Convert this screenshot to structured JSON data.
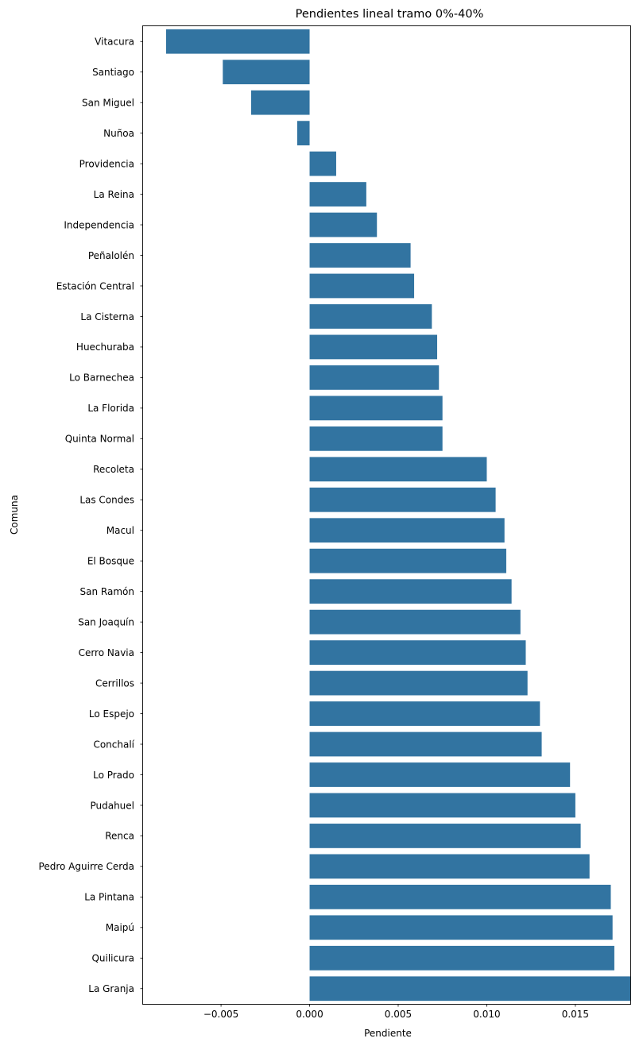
{
  "chart_data": {
    "type": "bar",
    "orientation": "horizontal",
    "title": "Pendientes lineal tramo 0%-40%",
    "xlabel": "Pendiente",
    "ylabel": "Comuna",
    "xlim": [
      -0.0094,
      0.0181
    ],
    "xticks": [
      -0.005,
      0.0,
      0.005,
      0.01,
      0.015
    ],
    "xtick_labels": [
      "−0.005",
      "0.000",
      "0.005",
      "0.010",
      "0.015"
    ],
    "grid": false,
    "bar_color": "#3274a1",
    "categories": [
      "Vitacura",
      "Santiago",
      "San Miguel",
      "Nuñoa",
      "Providencia",
      "La Reina",
      "Independencia",
      "Peñalolén",
      "Estación Central",
      "La Cisterna",
      "Huechuraba",
      "Lo Barnechea",
      "La Florida",
      "Quinta Normal",
      "Recoleta",
      "Las Condes",
      "Macul",
      "El Bosque",
      "San Ramón",
      "San Joaquín",
      "Cerro Navia",
      "Cerrillos",
      "Lo Espejo",
      "Conchalí",
      "Lo Prado",
      "Pudahuel",
      "Renca",
      "Pedro Aguirre Cerda",
      "La Pintana",
      "Maipú",
      "Quilicura",
      "La Granja"
    ],
    "values": [
      -0.0081,
      -0.0049,
      -0.0033,
      -0.0007,
      0.0015,
      0.0032,
      0.0038,
      0.0057,
      0.0059,
      0.0069,
      0.0072,
      0.0073,
      0.0075,
      0.0075,
      0.01,
      0.0105,
      0.011,
      0.0111,
      0.0114,
      0.0119,
      0.0122,
      0.0123,
      0.013,
      0.0131,
      0.0147,
      0.015,
      0.0153,
      0.0158,
      0.017,
      0.0171,
      0.0172,
      0.0181
    ]
  }
}
